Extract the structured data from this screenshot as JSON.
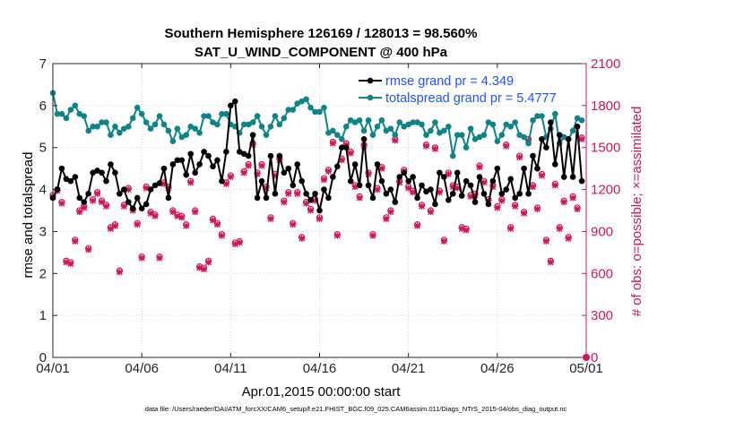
{
  "title_line1": "Southern Hemisphere 126169 / 128013 = 98.560%",
  "title_line2": "SAT_U_WIND_COMPONENT @ 400 hPa",
  "footer": "data file: /Users/raeder/DAI/ATM_forcXX/CAM6_setup/f.e21.FHIST_BGC.f09_025.CAM6assim.011/Diags_NTrS_2015-04/obs_diag_output.nc",
  "colors": {
    "rmse": "#000000",
    "spread": "#0e8488",
    "obs": "#d0155a",
    "legend_text": "#1a53ff"
  },
  "chart_data": {
    "type": "line",
    "xlabel": "Apr.01,2015 00:00:00 start",
    "ylabel": "rmse and totalspread",
    "y2label": "# of obs: o=possible; ×=assimilated",
    "xlim": [
      0,
      30
    ],
    "ylim": [
      0,
      7
    ],
    "y2lim": [
      0,
      2100
    ],
    "x_ticks": [
      0,
      5,
      10,
      15,
      20,
      25,
      30
    ],
    "x_tick_labels": [
      "04/01",
      "04/06",
      "04/11",
      "04/16",
      "04/21",
      "04/26",
      "05/01"
    ],
    "y_ticks": [
      0,
      1,
      2,
      3,
      4,
      5,
      6,
      7
    ],
    "y2_ticks": [
      0,
      300,
      600,
      900,
      1200,
      1500,
      1800,
      2100
    ],
    "grid": true,
    "legend_position": "top-right",
    "series": [
      {
        "name": "rmse grand pr = 4.349",
        "axis": "left",
        "x": [
          0,
          0.25,
          0.5,
          0.75,
          1,
          1.25,
          1.5,
          1.75,
          2,
          2.25,
          2.5,
          2.75,
          3,
          3.25,
          3.5,
          3.75,
          4,
          4.25,
          4.5,
          4.75,
          5,
          5.25,
          5.5,
          5.75,
          6,
          6.25,
          6.5,
          6.75,
          7,
          7.25,
          7.5,
          7.75,
          8,
          8.25,
          8.5,
          8.75,
          9,
          9.25,
          9.5,
          9.75,
          10,
          10.25,
          10.5,
          10.75,
          11,
          11.25,
          11.5,
          11.75,
          12,
          12.25,
          12.5,
          12.75,
          13,
          13.25,
          13.5,
          13.75,
          14,
          14.25,
          14.5,
          14.75,
          15,
          15.25,
          15.5,
          15.75,
          16,
          16.25,
          16.5,
          16.75,
          17,
          17.25,
          17.5,
          17.75,
          18,
          18.25,
          18.5,
          18.75,
          19,
          19.25,
          19.5,
          19.75,
          20,
          20.25,
          20.5,
          20.75,
          21,
          21.25,
          21.5,
          21.75,
          22,
          22.25,
          22.5,
          22.75,
          23,
          23.25,
          23.5,
          23.75,
          24,
          24.25,
          24.5,
          24.75,
          25,
          25.25,
          25.5,
          25.75,
          26,
          26.25,
          26.5,
          26.75,
          27,
          27.25,
          27.5,
          27.75,
          28,
          28.25,
          28.5,
          28.75,
          29,
          29.25,
          29.5,
          29.75
        ],
        "y": [
          3.8,
          4.0,
          4.5,
          4.25,
          4.2,
          4.3,
          3.8,
          3.7,
          3.9,
          4.4,
          4.45,
          4.4,
          4.2,
          4.6,
          4.4,
          3.9,
          4.0,
          3.7,
          3.55,
          3.8,
          3.55,
          3.65,
          4.0,
          4.1,
          4.15,
          4.5,
          3.8,
          4.6,
          4.7,
          4.7,
          4.35,
          4.85,
          4.4,
          4.6,
          4.9,
          4.8,
          4.55,
          4.7,
          4.2,
          4.9,
          6.0,
          6.1,
          4.9,
          4.85,
          4.8,
          5.3,
          3.8,
          4.2,
          3.8,
          4.8,
          3.9,
          4.8,
          4.4,
          4.5,
          4.1,
          4.6,
          4.2,
          3.9,
          3.75,
          3.9,
          3.5,
          4.0,
          3.8,
          4.3,
          4.55,
          5.0,
          5.0,
          4.2,
          4.6,
          4.1,
          5.2,
          4.1,
          3.8,
          4.6,
          4.2,
          3.9,
          4.0,
          3.7,
          4.3,
          4.4,
          4.2,
          4.3,
          3.8,
          4.1,
          3.95,
          4.0,
          3.65,
          4.4,
          4.3,
          3.75,
          3.9,
          4.4,
          3.85,
          4.2,
          4.1,
          3.7,
          4.3,
          3.9,
          3.65,
          4.2,
          4.5,
          3.9,
          4.0,
          4.25,
          3.8,
          3.9,
          4.5,
          3.9,
          4.8,
          4.5,
          5.2,
          5.0,
          5.6,
          4.6,
          5.3,
          4.3,
          5.2,
          4.3,
          5.5,
          4.2
        ]
      },
      {
        "name": "totalspread grand pr = 5.4777",
        "axis": "left",
        "x": [
          0,
          0.25,
          0.5,
          0.75,
          1,
          1.25,
          1.5,
          1.75,
          2,
          2.25,
          2.5,
          2.75,
          3,
          3.25,
          3.5,
          3.75,
          4,
          4.25,
          4.5,
          4.75,
          5,
          5.25,
          5.5,
          5.75,
          6,
          6.25,
          6.5,
          6.75,
          7,
          7.25,
          7.5,
          7.75,
          8,
          8.25,
          8.5,
          8.75,
          9,
          9.25,
          9.5,
          9.75,
          10,
          10.25,
          10.5,
          10.75,
          11,
          11.25,
          11.5,
          11.75,
          12,
          12.25,
          12.5,
          12.75,
          13,
          13.25,
          13.5,
          13.75,
          14,
          14.25,
          14.5,
          14.75,
          15,
          15.25,
          15.5,
          15.75,
          16,
          16.25,
          16.5,
          16.75,
          17,
          17.25,
          17.5,
          17.75,
          18,
          18.25,
          18.5,
          18.75,
          19,
          19.25,
          19.5,
          19.75,
          20,
          20.25,
          20.5,
          20.75,
          21,
          21.25,
          21.5,
          21.75,
          22,
          22.25,
          22.5,
          22.75,
          23,
          23.25,
          23.5,
          23.75,
          24,
          24.25,
          24.5,
          24.75,
          25,
          25.25,
          25.5,
          25.75,
          26,
          26.25,
          26.5,
          26.75,
          27,
          27.25,
          27.5,
          27.75,
          28,
          28.25,
          28.5,
          28.75,
          29,
          29.25,
          29.5,
          29.75
        ],
        "y": [
          6.3,
          5.8,
          5.8,
          5.7,
          5.9,
          6.0,
          5.8,
          5.75,
          5.4,
          5.5,
          5.5,
          5.6,
          5.6,
          5.3,
          5.5,
          5.35,
          5.45,
          5.5,
          5.7,
          5.95,
          5.8,
          5.6,
          5.45,
          5.55,
          5.75,
          5.55,
          5.4,
          5.15,
          5.45,
          5.25,
          5.3,
          5.5,
          5.45,
          5.35,
          5.75,
          5.75,
          5.6,
          5.55,
          5.8,
          5.8,
          5.55,
          5.5,
          5.35,
          5.55,
          5.55,
          5.6,
          5.75,
          5.5,
          5.3,
          5.5,
          5.75,
          5.55,
          5.7,
          5.9,
          5.9,
          6.05,
          6.1,
          6.15,
          5.95,
          5.85,
          5.85,
          5.95,
          5.35,
          5.4,
          5.3,
          5.2,
          5.5,
          5.65,
          5.6,
          5.65,
          5.4,
          5.65,
          5.3,
          5.5,
          5.65,
          5.4,
          5.45,
          5.3,
          5.6,
          5.5,
          5.55,
          5.6,
          5.6,
          5.55,
          5.3,
          5.4,
          5.6,
          5.35,
          5.4,
          5.5,
          4.8,
          5.3,
          5.3,
          5.0,
          5.45,
          5.2,
          5.25,
          5.3,
          5.6,
          5.55,
          5.15,
          5.3,
          5.55,
          5.5,
          5.6,
          5.3,
          5.25,
          5.1,
          5.65,
          5.75,
          5.75,
          5.25,
          5.45,
          5.8,
          5.1,
          5.25,
          5.2,
          5.4,
          5.7,
          5.65
        ]
      },
      {
        "name": "possible obs",
        "axis": "right",
        "x": [
          0,
          0.25,
          0.5,
          0.75,
          1,
          1.25,
          1.5,
          1.75,
          2,
          2.25,
          2.5,
          2.75,
          3,
          3.25,
          3.5,
          3.75,
          4,
          4.25,
          4.5,
          4.75,
          5,
          5.25,
          5.5,
          5.75,
          6,
          6.25,
          6.5,
          6.75,
          7,
          7.25,
          7.5,
          7.75,
          8,
          8.25,
          8.5,
          8.75,
          9,
          9.25,
          9.5,
          9.75,
          10,
          10.25,
          10.5,
          10.75,
          11,
          11.25,
          11.5,
          11.75,
          12,
          12.25,
          12.5,
          12.75,
          13,
          13.25,
          13.5,
          13.75,
          14,
          14.25,
          14.5,
          14.75,
          15,
          15.25,
          15.5,
          15.75,
          16,
          16.25,
          16.5,
          16.75,
          17,
          17.25,
          17.5,
          17.75,
          18,
          18.25,
          18.5,
          18.75,
          19,
          19.25,
          19.5,
          19.75,
          20,
          20.25,
          20.5,
          20.75,
          21,
          21.25,
          21.5,
          21.75,
          22,
          22.25,
          22.5,
          22.75,
          23,
          23.25,
          23.5,
          23.75,
          24,
          24.25,
          24.5,
          24.75,
          25,
          25.25,
          25.5,
          25.75,
          26,
          26.25,
          26.5,
          26.75,
          27,
          27.25,
          27.5,
          27.75,
          28,
          28.25,
          28.5,
          28.75,
          29,
          29.25,
          29.5,
          29.75
        ],
        "y": [
          1160,
          1200,
          1110,
          690,
          680,
          840,
          1050,
          1080,
          780,
          1130,
          1180,
          1120,
          1090,
          930,
          950,
          620,
          1090,
          1210,
          1060,
          960,
          720,
          1220,
          1040,
          1020,
          720,
          1250,
          1220,
          1050,
          1020,
          1010,
          950,
          1260,
          1050,
          650,
          640,
          690,
          990,
          960,
          880,
          1250,
          1300,
          820,
          830,
          1330,
          1380,
          1530,
          1320,
          1380,
          1220,
          1000,
          1310,
          1420,
          1120,
          1180,
          960,
          1180,
          860,
          1110,
          1060,
          1130,
          1000,
          1280,
          1340,
          1540,
          880,
          1420,
          1530,
          1470,
          1230,
          1150,
          1520,
          1320,
          880,
          1210,
          1360,
          1000,
          1050,
          1560,
          1260,
          1340,
          1220,
          1190,
          950,
          1090,
          1520,
          1050,
          1500,
          1190,
          840,
          1320,
          1230,
          1220,
          930,
          920,
          1160,
          1170,
          1370,
          1260,
          1130,
          1230,
          1080,
          1130,
          1520,
          930,
          1090,
          1440,
          1040,
          1560,
          1230,
          1070,
          1310,
          840,
          690,
          1240,
          930,
          1120,
          860,
          1150,
          1070,
          1570
        ]
      },
      {
        "name": "assimilated obs",
        "axis": "right",
        "x": [
          0,
          0.25,
          0.5,
          0.75,
          1,
          1.25,
          1.5,
          1.75,
          2,
          2.25,
          2.5,
          2.75,
          3,
          3.25,
          3.5,
          3.75,
          4,
          4.25,
          4.5,
          4.75,
          5,
          5.25,
          5.5,
          5.75,
          6,
          6.25,
          6.5,
          6.75,
          7,
          7.25,
          7.5,
          7.75,
          8,
          8.25,
          8.5,
          8.75,
          9,
          9.25,
          9.5,
          9.75,
          10,
          10.25,
          10.5,
          10.75,
          11,
          11.25,
          11.5,
          11.75,
          12,
          12.25,
          12.5,
          12.75,
          13,
          13.25,
          13.5,
          13.75,
          14,
          14.25,
          14.5,
          14.75,
          15,
          15.25,
          15.5,
          15.75,
          16,
          16.25,
          16.5,
          16.75,
          17,
          17.25,
          17.5,
          17.75,
          18,
          18.25,
          18.5,
          18.75,
          19,
          19.25,
          19.5,
          19.75,
          20,
          20.25,
          20.5,
          20.75,
          21,
          21.25,
          21.5,
          21.75,
          22,
          22.25,
          22.5,
          22.75,
          23,
          23.25,
          23.5,
          23.75,
          24,
          24.25,
          24.5,
          24.75,
          25,
          25.25,
          25.5,
          25.75,
          26,
          26.25,
          26.5,
          26.75,
          27,
          27.25,
          27.5,
          27.75,
          28,
          28.25,
          28.5,
          28.75,
          29,
          29.25,
          29.5,
          29.75
        ],
        "y": [
          1150,
          1190,
          1100,
          680,
          670,
          830,
          1040,
          1070,
          770,
          1120,
          1170,
          1110,
          1080,
          920,
          940,
          610,
          1080,
          1200,
          1050,
          950,
          710,
          1210,
          1030,
          1010,
          710,
          1240,
          1210,
          1040,
          1010,
          1000,
          940,
          1250,
          1040,
          640,
          630,
          680,
          980,
          950,
          870,
          1240,
          1290,
          810,
          820,
          1320,
          1370,
          1520,
          1310,
          1370,
          1210,
          990,
          1300,
          1410,
          1110,
          1170,
          950,
          1170,
          850,
          1100,
          1050,
          1120,
          990,
          1270,
          1330,
          1530,
          870,
          1410,
          1520,
          1460,
          1220,
          1140,
          1510,
          1310,
          870,
          1200,
          1350,
          990,
          1040,
          1550,
          1250,
          1330,
          1210,
          1180,
          940,
          1080,
          1510,
          1040,
          1490,
          1180,
          830,
          1310,
          1220,
          1210,
          920,
          910,
          1150,
          1160,
          1360,
          1250,
          1120,
          1220,
          1070,
          1120,
          1510,
          920,
          1080,
          1430,
          1030,
          1550,
          1220,
          1060,
          1300,
          830,
          680,
          1230,
          920,
          1110,
          850,
          1140,
          1060,
          1560
        ]
      }
    ]
  }
}
